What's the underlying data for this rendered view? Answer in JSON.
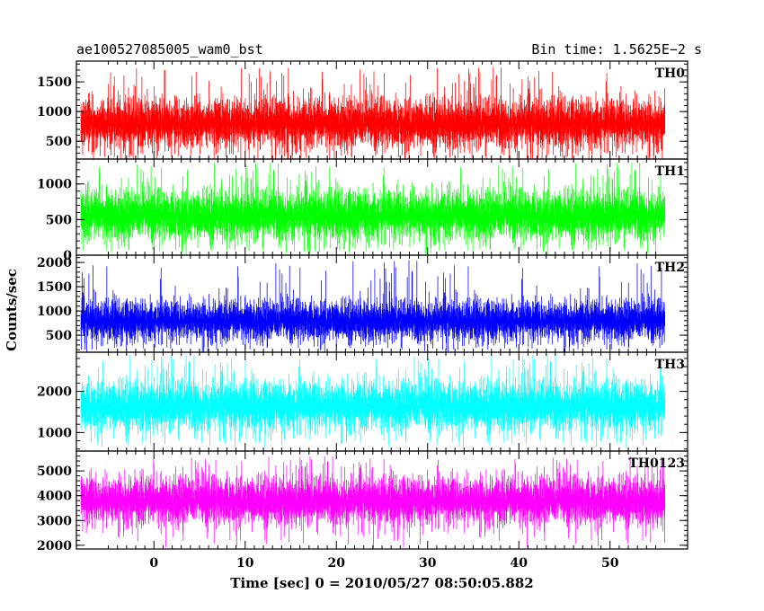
{
  "header": {
    "left_title": "ae100527085005_wam0_bst",
    "right_title": "Bin time: 1.5625E−2 s"
  },
  "axes": {
    "xlabel": "Time [sec] 0 = 2010/05/27 08:50:05.882",
    "ylabel": "Counts/sec"
  },
  "chart_data": [
    {
      "type": "line",
      "name": "TH0",
      "color": "#ff0000",
      "xlim": [
        -8.5,
        58.5
      ],
      "ylim": [
        200,
        1850
      ],
      "yticks": [
        500,
        1000,
        1500
      ],
      "x_range": [
        -8,
        56
      ],
      "y_typical": [
        300,
        1350
      ],
      "y_spikes_max": 1750,
      "y_spikes_min": 180,
      "mean": 800
    },
    {
      "type": "line",
      "name": "TH1",
      "color": "#00ff00",
      "xlim": [
        -8.5,
        58.5
      ],
      "ylim": [
        0,
        1350
      ],
      "yticks": [
        0,
        500,
        1000
      ],
      "x_range": [
        -8,
        56
      ],
      "y_typical": [
        120,
        1000
      ],
      "y_spikes_max": 1300,
      "y_spikes_min": 40,
      "mean": 560
    },
    {
      "type": "line",
      "name": "TH2",
      "color": "#0000ff",
      "xlim": [
        -8.5,
        58.5
      ],
      "ylim": [
        150,
        2150
      ],
      "yticks": [
        500,
        1000,
        1500,
        2000
      ],
      "x_range": [
        -8,
        56
      ],
      "y_typical": [
        350,
        1400
      ],
      "y_spikes_max": 2050,
      "y_spikes_min": 200,
      "mean": 800
    },
    {
      "type": "line",
      "name": "TH3",
      "color": "#00ffff",
      "xlim": [
        -8.5,
        58.5
      ],
      "ylim": [
        550,
        2950
      ],
      "yticks": [
        1000,
        2000
      ],
      "x_range": [
        -8,
        56
      ],
      "y_typical": [
        900,
        2400
      ],
      "y_spikes_max": 2900,
      "y_spikes_min": 650,
      "mean": 1650
    },
    {
      "type": "line",
      "name": "TH0123",
      "color": "#ff00ff",
      "xlim": [
        -8.5,
        58.5
      ],
      "ylim": [
        1850,
        5800
      ],
      "yticks": [
        2000,
        3000,
        4000,
        5000
      ],
      "xticks": [
        0,
        10,
        20,
        30,
        40,
        50
      ],
      "x_range": [
        -8,
        56
      ],
      "y_typical": [
        2600,
        5000
      ],
      "y_spikes_max": 5600,
      "y_spikes_min": 1900,
      "mean": 3800
    }
  ]
}
